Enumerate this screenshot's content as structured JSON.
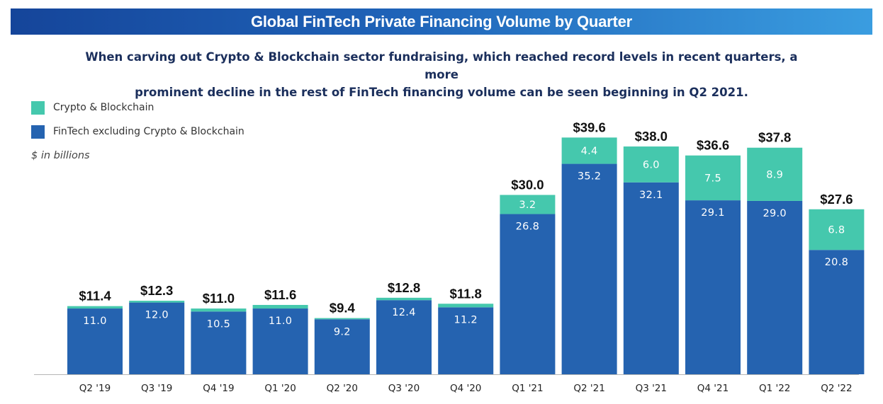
{
  "chart_data": {
    "type": "bar",
    "stacked": true,
    "title": "Global FinTech Private Financing Volume by Quarter",
    "subtitle_lines": [
      "When carving out Crypto & Blockchain sector fundraising, which reached record levels in recent quarters, a more",
      "prominent decline in the rest of FinTech financing volume can be seen beginning in Q2 2021."
    ],
    "units_note": "$ in billions",
    "legend_placement": "top-left",
    "grid": false,
    "ylim": [
      0,
      40
    ],
    "categories": [
      "Q2 '19",
      "Q3 '19",
      "Q4 '19",
      "Q1 '20",
      "Q2 '20",
      "Q3 '20",
      "Q4 '20",
      "Q1 '21",
      "Q2 '21",
      "Q3 '21",
      "Q4 '21",
      "Q1 '22",
      "Q2 '22"
    ],
    "totals": [
      "$11.4",
      "$12.3",
      "$11.0",
      "$11.6",
      "$9.4",
      "$12.8",
      "$11.8",
      "$30.0",
      "$39.6",
      "$38.0",
      "$36.6",
      "$37.8",
      "$27.6"
    ],
    "total_values": [
      11.4,
      12.3,
      11.0,
      11.6,
      9.4,
      12.8,
      11.8,
      30.0,
      39.6,
      38.0,
      36.6,
      37.8,
      27.6
    ],
    "series": [
      {
        "name": "FinTech excluding Crypto & Blockchain",
        "color": "#2563b0",
        "values": [
          11.0,
          12.0,
          10.5,
          11.0,
          9.2,
          12.4,
          11.2,
          26.8,
          35.2,
          32.1,
          29.1,
          29.0,
          20.8
        ],
        "labels": [
          "11.0",
          "12.0",
          "10.5",
          "11.0",
          "9.2",
          "12.4",
          "11.2",
          "26.8",
          "35.2",
          "32.1",
          "29.1",
          "29.0",
          "20.8"
        ]
      },
      {
        "name": "Crypto & Blockchain",
        "color": "#45c8ad",
        "values": [
          0.4,
          0.3,
          0.5,
          0.6,
          0.2,
          0.4,
          0.6,
          3.2,
          4.4,
          6.0,
          7.5,
          8.9,
          6.8
        ],
        "labels": [
          "",
          "",
          "",
          "",
          "",
          "",
          "",
          "3.2",
          "4.4",
          "6.0",
          "7.5",
          "8.9",
          "6.8"
        ]
      }
    ]
  },
  "legend": {
    "crypto_label": "Crypto & Blockchain",
    "fintech_label": "FinTech excluding Crypto & Blockchain"
  }
}
